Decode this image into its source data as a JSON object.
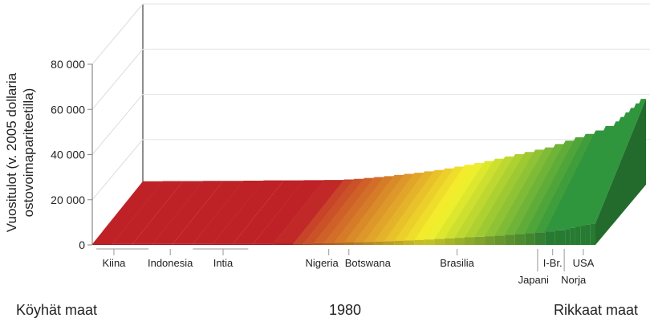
{
  "chart_data": {
    "type": "bar",
    "title": "",
    "ylabel_line1": "Vuositulot (v. 2005 dollaria",
    "ylabel_line2": "ostovoimapariteetilla)",
    "ylim": [
      0,
      80000
    ],
    "yticks": [
      0,
      20000,
      40000,
      60000,
      80000
    ],
    "ytick_labels": [
      "0",
      "20 000",
      "40 000",
      "60 000",
      "80 000"
    ],
    "xlim": [
      0,
      100
    ],
    "grid": true,
    "x": [
      0,
      4,
      8,
      12,
      16,
      20,
      24,
      28,
      32,
      36,
      40,
      42,
      44,
      46,
      48,
      50,
      52,
      54,
      56,
      58,
      60,
      62,
      64,
      66,
      68,
      70,
      72,
      74,
      76,
      78,
      80,
      82,
      84,
      86,
      88,
      90,
      92,
      94,
      95,
      96,
      97,
      98,
      99,
      100
    ],
    "values": [
      1500,
      1600,
      1600,
      1700,
      1700,
      1800,
      1900,
      1900,
      2000,
      2100,
      2300,
      2600,
      3000,
      3400,
      3800,
      4300,
      4800,
      5300,
      5900,
      6500,
      7200,
      8000,
      8800,
      9600,
      10500,
      11500,
      12500,
      13500,
      14500,
      15500,
      16500,
      18000,
      19500,
      21000,
      22500,
      24000,
      26000,
      28000,
      30000,
      32000,
      34000,
      36000,
      38000,
      38000
    ],
    "colors": {
      "poor": "#b52025",
      "mid": "#e9e62a",
      "rich": "#2e8f3a"
    },
    "countries": [
      {
        "name": "Kiina",
        "x": 4.3,
        "range": [
          0.8,
          11.2
        ],
        "row": 1
      },
      {
        "name": "Indonesia",
        "x": 15.5,
        "row": 1
      },
      {
        "name": "Intia",
        "x": 26,
        "range": [
          20,
          31
        ],
        "row": 1
      },
      {
        "name": "Nigeria",
        "x": 47,
        "row": 1
      },
      {
        "name": "Botswana",
        "x": 51,
        "row": 1
      },
      {
        "name": "Brasilia",
        "x": 72.5,
        "row": 1
      },
      {
        "name": "Japani",
        "x": 88.5,
        "row": 2
      },
      {
        "name": "I-Br.",
        "x": 91.5,
        "row": 1
      },
      {
        "name": "Norja",
        "x": 93.8,
        "row": 2
      },
      {
        "name": "USA",
        "x": 97.6,
        "row": 1
      }
    ],
    "left_label": "Köyhät maat",
    "center_label": "1980",
    "right_label": "Rikkaat maat"
  }
}
